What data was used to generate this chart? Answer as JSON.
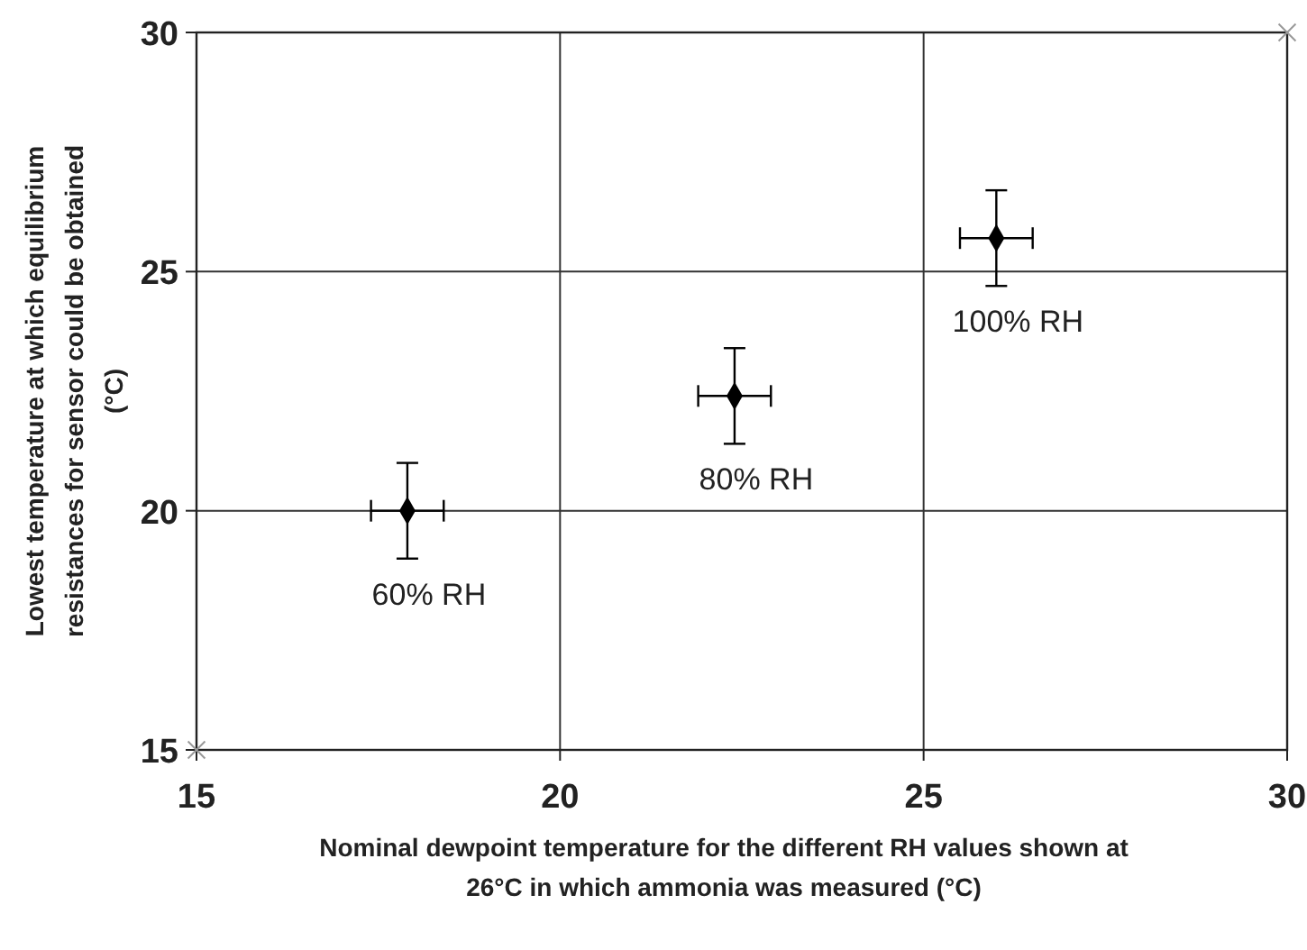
{
  "chart_data": {
    "type": "scatter",
    "xlabel": "Nominal dewpoint temperature for the different RH values shown at 26°C in which ammonia was measured (°C)",
    "ylabel": "Lowest temperature at which equilibrium resistances for sensor could be obtained (°C)",
    "xlim": [
      15,
      30
    ],
    "xticks": [
      15,
      20,
      25,
      30
    ],
    "ylim": [
      15,
      30
    ],
    "yticks": [
      15,
      20,
      25,
      30
    ],
    "grid": true,
    "series": [
      {
        "color": "#000000",
        "marker": "diamond",
        "x": [
          17.9,
          22.4,
          26.0
        ],
        "values": [
          20.0,
          22.4,
          25.7
        ],
        "errors": [
          1,
          1,
          1
        ],
        "xerrors": [
          0.5,
          0.5,
          0.5
        ]
      },
      {
        "color": "#999999",
        "marker": "cross",
        "x": [
          15,
          30
        ],
        "values": [
          15,
          30
        ]
      }
    ],
    "annotations": [
      {
        "text": "60% RH",
        "x": 17.9,
        "y": 20.0
      },
      {
        "text": "80% RH",
        "x": 22.4,
        "y": 22.4
      },
      {
        "text": "100% RH",
        "x": 26.0,
        "y": 25.7
      }
    ]
  }
}
